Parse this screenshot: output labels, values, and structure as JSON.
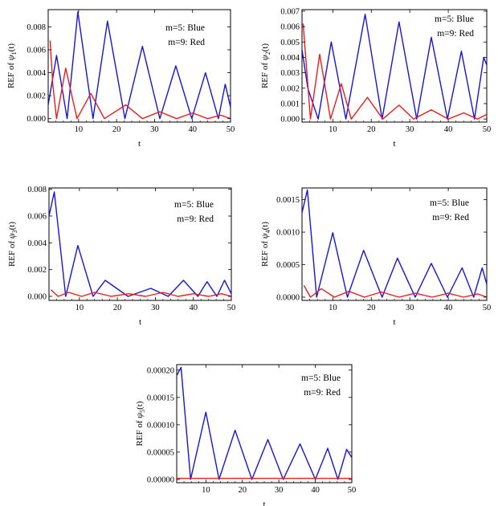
{
  "figure": {
    "panels": 5
  },
  "colors": {
    "m5": "#1515dd",
    "m9": "#ee1c1c",
    "axis": "#000000"
  },
  "chart_data": [
    {
      "type": "line",
      "ylabel_prefix": "REF of ",
      "ylabel_func": "ψ",
      "ylabel_sub": "1",
      "ylabel_suffix": "(t)",
      "xlabel": "t",
      "xlim": [
        2,
        50
      ],
      "ylim": [
        -0.0003,
        0.0095
      ],
      "xticks": [
        10,
        20,
        30,
        40,
        50
      ],
      "xtick_labels": [
        "10",
        "20",
        "30",
        "40",
        "50"
      ],
      "yticks": [
        0,
        0.002,
        0.004,
        0.006,
        0.008
      ],
      "ytick_labels": [
        "0.000",
        "0.002",
        "0.004",
        "0.006",
        "0.008"
      ],
      "legend": [
        "m=5: Blue",
        "m=9: Red"
      ],
      "series": [
        {
          "name": "m=5: Blue",
          "color_key": "m5",
          "x": [
            2,
            4.2,
            7.0,
            9.8,
            13.8,
            17.6,
            22.2,
            26.8,
            31.4,
            35.6,
            39.8,
            43.4,
            46.8,
            48.6,
            50
          ],
          "y": [
            0.0012,
            0.0055,
            0,
            0.0093,
            0,
            0.0085,
            0,
            0.0063,
            0,
            0.0046,
            0,
            0.004,
            0,
            0.003,
            0.001
          ]
        },
        {
          "name": "m=9: Red",
          "color_key": "m9",
          "x": [
            2.5,
            3.2,
            4.2,
            6.6,
            9.6,
            13.2,
            16.8,
            22.4,
            26.8,
            31.4,
            35.8,
            40.0,
            44.0,
            47.4,
            50
          ],
          "y": [
            0.0068,
            0.003,
            0,
            0.0044,
            0,
            0.0022,
            0,
            0.0012,
            0,
            0.0006,
            0,
            0.0005,
            0,
            0.0003,
            0
          ]
        }
      ]
    },
    {
      "type": "line",
      "ylabel_prefix": "REF of ",
      "ylabel_func": "ψ",
      "ylabel_sub": "2",
      "ylabel_suffix": "(t)",
      "xlabel": "t",
      "xlim": [
        2,
        50
      ],
      "ylim": [
        -0.0002,
        0.0071
      ],
      "xticks": [
        10,
        20,
        30,
        40,
        50
      ],
      "xtick_labels": [
        "10",
        "20",
        "30",
        "40",
        "50"
      ],
      "yticks": [
        0,
        0.001,
        0.002,
        0.003,
        0.004,
        0.005,
        0.006,
        0.007
      ],
      "ytick_labels": [
        "0.000",
        "0.001",
        "0.002",
        "0.003",
        "0.004",
        "0.005",
        "0.006",
        "0.007"
      ],
      "legend": [
        "m=5: Blue",
        "m=9: Red"
      ],
      "series": [
        {
          "name": "m=5: Blue",
          "color_key": "m5",
          "x": [
            2,
            3.5,
            6.2,
            9.6,
            13.4,
            18.4,
            22.8,
            27.2,
            31.8,
            35.6,
            39.8,
            43.4,
            46.8,
            49.2,
            50
          ],
          "y": [
            0.0045,
            0.002,
            0,
            0.005,
            0,
            0.0068,
            0,
            0.0063,
            0,
            0.0053,
            0,
            0.0044,
            0,
            0.004,
            0.0035
          ]
        },
        {
          "name": "m=9: Red",
          "color_key": "m9",
          "x": [
            2.3,
            4.2,
            6.6,
            9.4,
            12.2,
            14.8,
            19.0,
            23.0,
            27.2,
            31.0,
            35.6,
            40.0,
            44.0,
            47.6,
            50
          ],
          "y": [
            0.0062,
            0,
            0.0042,
            0,
            0.0023,
            0,
            0.0014,
            0,
            0.0009,
            0,
            0.0006,
            0,
            0.0004,
            0,
            0.0003
          ]
        }
      ]
    },
    {
      "type": "line",
      "ylabel_prefix": "REF of ",
      "ylabel_func": "ψ",
      "ylabel_sub": "3",
      "ylabel_suffix": "(t)",
      "xlabel": "t",
      "xlim": [
        2,
        50
      ],
      "ylim": [
        -0.0003,
        0.0081
      ],
      "xticks": [
        10,
        20,
        30,
        40,
        50
      ],
      "xtick_labels": [
        "10",
        "20",
        "30",
        "40",
        "50"
      ],
      "yticks": [
        0,
        0.002,
        0.004,
        0.006,
        0.008
      ],
      "ytick_labels": [
        "0.000",
        "0.002",
        "0.004",
        "0.006",
        "0.008"
      ],
      "legend": [
        "m=5: Blue",
        "m=9: Red"
      ],
      "series": [
        {
          "name": "m=5: Blue",
          "color_key": "m5",
          "x": [
            2,
            3.4,
            6.4,
            9.6,
            13.6,
            16.8,
            22.8,
            28.8,
            33.4,
            37.4,
            41.2,
            43.6,
            46.2,
            48.2,
            50
          ],
          "y": [
            0.006,
            0.0078,
            0,
            0.0038,
            0,
            0.0012,
            0,
            0.0006,
            0,
            0.0012,
            0,
            0.0011,
            0,
            0.0012,
            0.0002
          ]
        },
        {
          "name": "m=9: Red",
          "color_key": "m9",
          "x": [
            2.5,
            4.4,
            7.2,
            10.6,
            14.0,
            18.4,
            23.0,
            27.4,
            32.0,
            36.0,
            40.0,
            44.0,
            47.4,
            50
          ],
          "y": [
            0.0005,
            0,
            0.0003,
            0,
            0.0003,
            0,
            0.0002,
            0,
            0.0003,
            0,
            0.0002,
            0,
            0.0002,
            0
          ]
        }
      ]
    },
    {
      "type": "line",
      "ylabel_prefix": "REF of ",
      "ylabel_func": "ψ",
      "ylabel_sub": "4",
      "ylabel_suffix": "(t)",
      "xlabel": "t",
      "xlim": [
        2,
        50
      ],
      "ylim": [
        -5e-05,
        0.00168
      ],
      "xticks": [
        10,
        20,
        30,
        40,
        50
      ],
      "xtick_labels": [
        "10",
        "20",
        "30",
        "40",
        "50"
      ],
      "yticks": [
        0,
        0.0005,
        0.001,
        0.0015
      ],
      "ytick_labels": [
        "0.0000",
        "0.0005",
        "0.0010",
        "0.0015"
      ],
      "legend": [
        "m=5: Blue",
        "m=9: Red"
      ],
      "series": [
        {
          "name": "m=5: Blue",
          "color_key": "m5",
          "x": [
            2,
            3.4,
            5.8,
            10.0,
            13.8,
            18.0,
            22.8,
            26.8,
            31.4,
            35.6,
            39.8,
            43.6,
            46.6,
            48.8,
            50
          ],
          "y": [
            0.0013,
            0.00165,
            0,
            0.00099,
            0,
            0.00072,
            0,
            0.0006,
            0,
            0.00052,
            0,
            0.00045,
            0,
            0.00045,
            0.0002
          ]
        },
        {
          "name": "m=9: Red",
          "color_key": "m9",
          "x": [
            2.5,
            4.2,
            7.0,
            10.4,
            14.2,
            18.2,
            22.6,
            27.2,
            31.4,
            35.8,
            40.0,
            44.0,
            47.6,
            50
          ],
          "y": [
            0.00018,
            0,
            0.00013,
            0,
            9e-05,
            0,
            8e-05,
            0,
            6e-05,
            0,
            6e-05,
            0,
            5e-05,
            0
          ]
        }
      ]
    },
    {
      "type": "line",
      "ylabel_prefix": "REF of ",
      "ylabel_func": "ψ",
      "ylabel_sub": "5",
      "ylabel_suffix": "(t)",
      "xlabel": "t",
      "xlim": [
        2,
        50
      ],
      "ylim": [
        -6e-06,
        0.00021
      ],
      "xticks": [
        10,
        20,
        30,
        40,
        50
      ],
      "xtick_labels": [
        "10",
        "20",
        "30",
        "40",
        "50"
      ],
      "yticks": [
        0,
        5e-05,
        0.0001,
        0.00015,
        0.0002
      ],
      "ytick_labels": [
        "0.00000",
        "0.00005",
        "0.00010",
        "0.00015",
        "0.00020"
      ],
      "legend": [
        "m=5: Blue",
        "m=9: Red"
      ],
      "series": [
        {
          "name": "m=5: Blue",
          "color_key": "m5",
          "x": [
            2,
            3.2,
            5.8,
            10.0,
            13.6,
            18.0,
            22.6,
            27.0,
            31.2,
            35.8,
            40.0,
            43.4,
            46.2,
            48.6,
            50
          ],
          "y": [
            0.00019,
            0.000205,
            0,
            0.000123,
            0,
            9e-05,
            0,
            7.3e-05,
            0,
            6.5e-05,
            0,
            5.7e-05,
            0,
            5.5e-05,
            4e-05
          ]
        },
        {
          "name": "m=9: Red",
          "color_key": "m9",
          "x": [
            2,
            50
          ],
          "y": [
            2e-06,
            2e-06
          ]
        }
      ]
    }
  ]
}
